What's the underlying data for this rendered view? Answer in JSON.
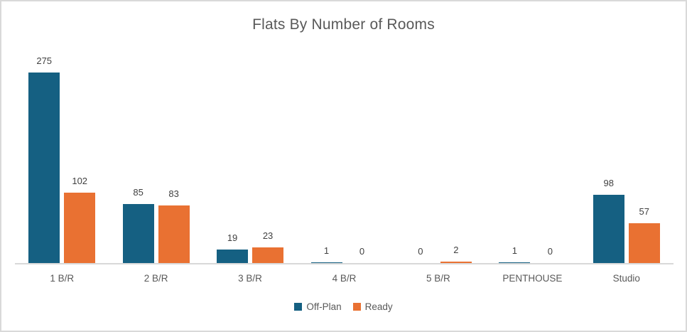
{
  "chart_data": {
    "type": "bar",
    "title": "Flats By Number of Rooms",
    "categories": [
      "1 B/R",
      "2 B/R",
      "3 B/R",
      "4 B/R",
      "5 B/R",
      "PENTHOUSE",
      "Studio"
    ],
    "series": [
      {
        "name": "Off-Plan",
        "color": "#156082",
        "values": [
          275,
          85,
          19,
          1,
          0,
          1,
          98
        ]
      },
      {
        "name": "Ready",
        "color": "#e97132",
        "values": [
          102,
          83,
          23,
          0,
          2,
          0,
          57
        ]
      }
    ],
    "xlabel": "",
    "ylabel": "",
    "ylim": [
      0,
      300
    ],
    "grid": false,
    "y_axis_visible": false,
    "legend_position": "bottom",
    "data_labels": "outside-end",
    "title_color": "#595959",
    "axis_line_color": "#d9d9d9",
    "label_color": "#404040",
    "tick_label_color": "#595959"
  }
}
